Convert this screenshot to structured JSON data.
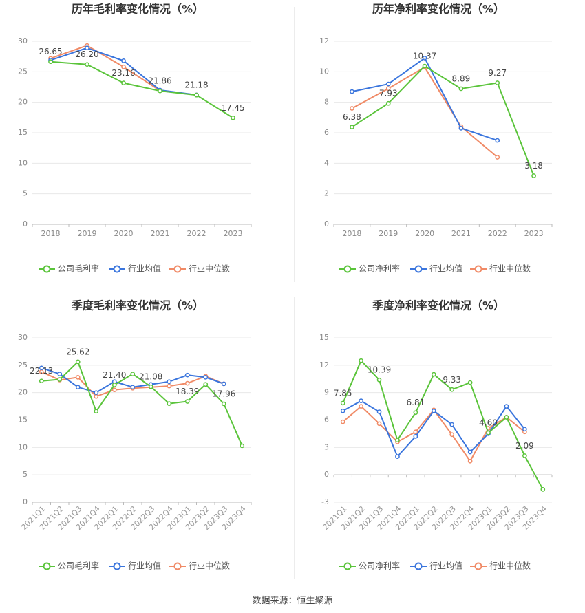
{
  "source": "数据来源：恒生聚源",
  "colors": {
    "company": "#5ac43a",
    "avg": "#3a75dd",
    "median": "#f08a66"
  },
  "chart_data": [
    {
      "type": "line",
      "title": "历年毛利率变化情况（%）",
      "categories": [
        "2018",
        "2019",
        "2020",
        "2021",
        "2022",
        "2023"
      ],
      "ylim": [
        0,
        30
      ],
      "yticks": [
        0,
        5,
        10,
        15,
        20,
        25,
        30
      ],
      "series": [
        {
          "name": "公司毛利率",
          "color": "#5ac43a",
          "values": [
            26.65,
            26.2,
            23.16,
            21.86,
            21.18,
            17.45
          ]
        },
        {
          "name": "行业均值",
          "color": "#3a75dd",
          "values": [
            26.9,
            28.9,
            26.8,
            22.0,
            21.2,
            null
          ]
        },
        {
          "name": "行业中位数",
          "color": "#f08a66",
          "values": [
            27.2,
            29.3,
            25.8,
            21.9,
            21.2,
            null
          ]
        }
      ],
      "labels": [
        "26.65",
        "26.20",
        "23.16",
        "21.86",
        "21.18",
        "17.45"
      ],
      "legend": [
        "公司毛利率",
        "行业均值",
        "行业中位数"
      ]
    },
    {
      "type": "line",
      "title": "历年净利率变化情况（%）",
      "categories": [
        "2018",
        "2019",
        "2020",
        "2021",
        "2022",
        "2023"
      ],
      "ylim": [
        0,
        12
      ],
      "yticks": [
        0,
        2,
        4,
        6,
        8,
        10,
        12
      ],
      "series": [
        {
          "name": "公司净利率",
          "color": "#5ac43a",
          "values": [
            6.38,
            7.93,
            10.37,
            8.89,
            9.27,
            3.18
          ]
        },
        {
          "name": "行业均值",
          "color": "#3a75dd",
          "values": [
            8.7,
            9.2,
            10.9,
            6.3,
            5.5,
            null
          ]
        },
        {
          "name": "行业中位数",
          "color": "#f08a66",
          "values": [
            7.6,
            8.9,
            10.3,
            6.4,
            4.4,
            null
          ]
        }
      ],
      "labels": [
        "6.38",
        "7.93",
        "10.37",
        "8.89",
        "9.27",
        "3.18"
      ],
      "legend": [
        "公司净利率",
        "行业均值",
        "行业中位数"
      ]
    },
    {
      "type": "line",
      "title": "季度毛利率变化情况（%）",
      "categories": [
        "2021Q1",
        "2021Q2",
        "2021Q3",
        "2021Q4",
        "2022Q1",
        "2022Q2",
        "2022Q3",
        "2022Q4",
        "2023Q1",
        "2023Q2",
        "2023Q3",
        "2023Q4"
      ],
      "ylim": [
        0,
        30
      ],
      "yticks": [
        0,
        5,
        10,
        15,
        20,
        25,
        30
      ],
      "series": [
        {
          "name": "公司毛利率",
          "color": "#5ac43a",
          "values": [
            22.13,
            22.4,
            25.62,
            16.6,
            21.4,
            23.4,
            21.08,
            18.0,
            18.39,
            21.5,
            17.96,
            10.3
          ]
        },
        {
          "name": "行业均值",
          "color": "#3a75dd",
          "values": [
            24.5,
            23.4,
            21.0,
            20.0,
            22.0,
            21.0,
            21.5,
            22.0,
            23.2,
            22.8,
            21.6,
            null
          ]
        },
        {
          "name": "行业中位数",
          "color": "#f08a66",
          "values": [
            23.8,
            22.3,
            22.8,
            19.3,
            20.5,
            20.8,
            21.0,
            21.2,
            21.7,
            23.0,
            21.6,
            null
          ]
        }
      ],
      "labels": [
        "22.13",
        "",
        "25.62",
        "",
        "21.40",
        "",
        "21.08",
        "",
        "18.39",
        "",
        "17.96",
        ""
      ],
      "legend": [
        "公司毛利率",
        "行业均值",
        "行业中位数"
      ]
    },
    {
      "type": "line",
      "title": "季度净利率变化情况（%）",
      "categories": [
        "2021Q1",
        "2021Q2",
        "2021Q3",
        "2021Q4",
        "2022Q1",
        "2022Q2",
        "2022Q3",
        "2022Q4",
        "2023Q1",
        "2023Q2",
        "2023Q3",
        "2023Q4"
      ],
      "ylim": [
        -3,
        15
      ],
      "yticks": [
        -3,
        0,
        3,
        6,
        9,
        12,
        15
      ],
      "series": [
        {
          "name": "公司净利率",
          "color": "#5ac43a",
          "values": [
            7.85,
            12.5,
            10.39,
            3.8,
            6.81,
            11.0,
            9.33,
            10.1,
            4.6,
            6.3,
            2.09,
            -1.6
          ]
        },
        {
          "name": "行业均值",
          "color": "#3a75dd",
          "values": [
            7.0,
            8.1,
            6.9,
            2.0,
            4.2,
            7.0,
            5.5,
            2.5,
            4.5,
            7.5,
            5.0,
            null
          ]
        },
        {
          "name": "行业中位数",
          "color": "#f08a66",
          "values": [
            5.8,
            7.5,
            5.6,
            3.6,
            4.7,
            7.1,
            4.4,
            1.5,
            5.1,
            6.3,
            4.7,
            null
          ]
        }
      ],
      "labels": [
        "7.85",
        "",
        "10.39",
        "",
        "6.81",
        "",
        "9.33",
        "",
        "4.60",
        "",
        "2.09",
        ""
      ],
      "legend": [
        "公司净利率",
        "行业均值",
        "行业中位数"
      ]
    }
  ]
}
